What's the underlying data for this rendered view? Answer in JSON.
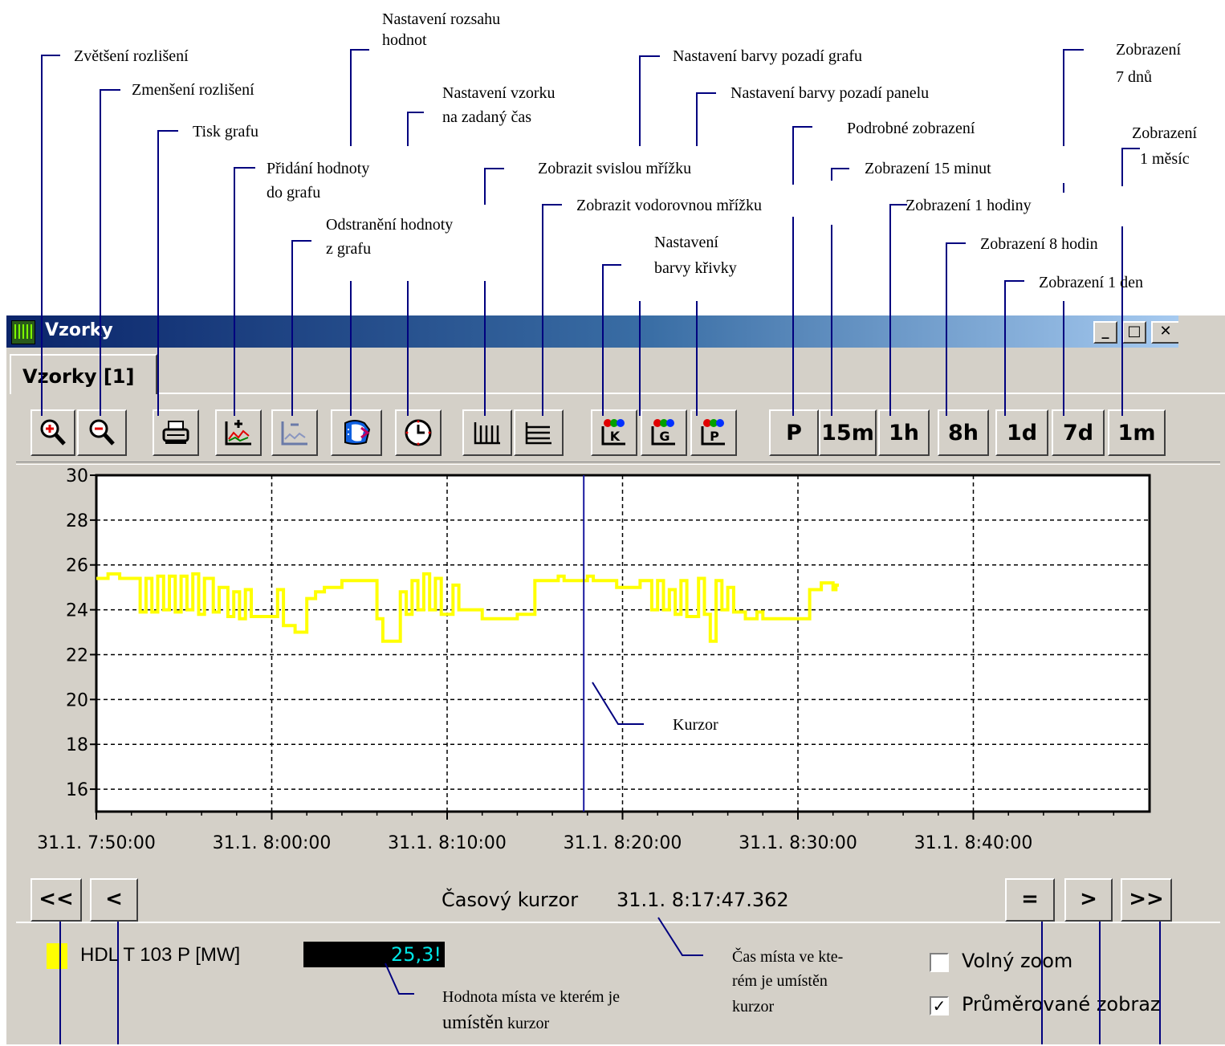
{
  "annotations": {
    "zoom_in": "Zvětšení rozlišení",
    "zoom_out": "Zmenšení rozlišení",
    "print": "Tisk grafu",
    "range_l1": "Nastavení rozsahu",
    "range_l2": "hodnot",
    "sample_l1": "Nastavení vzorku",
    "sample_l2": "na zadaný čas",
    "add_l1": "Přidání hodnoty",
    "add_l2": "do grafu",
    "remove_l1": "Odstranění hodnoty",
    "remove_l2": "z grafu",
    "bg_graph": "Nastavení barvy pozadí grafu",
    "bg_panel": "Nastavení barvy pozadí panelu",
    "vgrid": "Zobrazit svislou mřížku",
    "hgrid": "Zobrazit vodorovnou mřížku",
    "curve_l1": "Nastavení",
    "curve_l2": "barvy křivky",
    "detail": "Podrobné zobrazení",
    "m15": "Zobrazení 15 minut",
    "h1": "Zobrazení 1 hodiny",
    "h8": "Zobrazení 8 hodin",
    "d1": "Zobrazení 1 den",
    "d7_l1": "Zobrazení",
    "d7_l2": "7 dnů",
    "month_l1": "Zobrazení",
    "month_l2": "1 měsíc",
    "cursor": "Kurzor",
    "time_l1": "Čas místa ve kte-",
    "time_l2": "rém je umístěn",
    "time_l3": "kurzor",
    "val_l1": "Hodnota místa ve kterém je",
    "val_l2a": "umístěn",
    "val_l2b": " kurzor"
  },
  "window": {
    "title": "Vzorky",
    "tab": "Vzorky [1]",
    "minimize": "_",
    "maximize": "□",
    "close": "✕"
  },
  "toolbar": {
    "detail": "P",
    "m15": "15m",
    "h1": "1h",
    "h8": "8h",
    "d1": "1d",
    "d7": "7d",
    "month": "1m",
    "icons": [
      "zoom-in-icon",
      "zoom-out-icon",
      "printer-icon",
      "add-value-icon",
      "remove-value-icon",
      "range-icon",
      "clock-icon",
      "vertical-grid-icon",
      "horizontal-grid-icon",
      "curve-color-icon",
      "graph-bg-color-icon",
      "panel-bg-color-icon"
    ],
    "color_letters": [
      "K",
      "G",
      "P"
    ]
  },
  "navigation": {
    "first": "<<",
    "prev": "<",
    "eq": "=",
    "next": ">",
    "last": ">>",
    "cursor_label": "Časový kurzor",
    "cursor_time": "31.1. 8:17:47.362"
  },
  "legend": {
    "series": "HDL T 103  P [MW]",
    "value": "25,3!",
    "color": "#ffff00",
    "free_zoom": "Volný zoom",
    "free_zoom_checked": false,
    "avg": "Průměrované zobraz",
    "avg_checked": true
  },
  "chart_data": {
    "type": "line",
    "xlabel": "",
    "ylabel": "",
    "ylim": [
      15,
      30
    ],
    "yticks": [
      "30",
      "28",
      "26",
      "24",
      "22",
      "20",
      "18",
      "16"
    ],
    "xtick_labels": [
      "31.1. 7:50:00",
      "31.1. 8:00:00",
      "31.1. 8:10:00",
      "31.1. 8:20:00",
      "31.1. 8:30:00",
      "31.1. 8:40:00"
    ],
    "grid": true,
    "background": "#ffffff",
    "series_color": "#ffff00",
    "cursor_time": "31.1. 8:17:47.362",
    "series": [
      {
        "name": "HDL T 103  P [MW]",
        "points": [
          [
            "7:50:00",
            25.4
          ],
          [
            "7:50:40",
            25.4
          ],
          [
            "7:50:40",
            25.6
          ],
          [
            "7:51:20",
            25.6
          ],
          [
            "7:51:20",
            25.4
          ],
          [
            "7:52:30",
            25.4
          ],
          [
            "7:52:30",
            23.9
          ],
          [
            "7:52:50",
            23.9
          ],
          [
            "7:52:50",
            25.4
          ],
          [
            "7:53:10",
            25.4
          ],
          [
            "7:53:10",
            23.9
          ],
          [
            "7:53:30",
            23.9
          ],
          [
            "7:53:30",
            25.5
          ],
          [
            "7:53:50",
            25.5
          ],
          [
            "7:53:50",
            24.0
          ],
          [
            "7:54:10",
            24.0
          ],
          [
            "7:54:10",
            25.5
          ],
          [
            "7:54:30",
            25.5
          ],
          [
            "7:54:30",
            23.9
          ],
          [
            "7:54:50",
            23.9
          ],
          [
            "7:54:50",
            25.5
          ],
          [
            "7:55:10",
            25.5
          ],
          [
            "7:55:10",
            24.0
          ],
          [
            "7:55:30",
            24.0
          ],
          [
            "7:55:30",
            25.6
          ],
          [
            "7:55:50",
            25.6
          ],
          [
            "7:55:50",
            23.8
          ],
          [
            "7:56:10",
            23.8
          ],
          [
            "7:56:10",
            25.4
          ],
          [
            "7:56:40",
            25.4
          ],
          [
            "7:56:40",
            23.9
          ],
          [
            "7:57:00",
            23.9
          ],
          [
            "7:57:00",
            25.0
          ],
          [
            "7:57:30",
            25.0
          ],
          [
            "7:57:30",
            23.7
          ],
          [
            "7:57:50",
            23.7
          ],
          [
            "7:57:50",
            24.8
          ],
          [
            "7:58:10",
            24.8
          ],
          [
            "7:58:10",
            23.6
          ],
          [
            "7:58:30",
            23.6
          ],
          [
            "7:58:30",
            24.9
          ],
          [
            "7:58:50",
            24.9
          ],
          [
            "7:58:50",
            23.7
          ],
          [
            "8:00:20",
            23.7
          ],
          [
            "8:00:20",
            24.9
          ],
          [
            "8:00:40",
            24.9
          ],
          [
            "8:00:40",
            23.3
          ],
          [
            "8:01:20",
            23.3
          ],
          [
            "8:01:20",
            23.0
          ],
          [
            "8:02:00",
            23.0
          ],
          [
            "8:02:00",
            24.5
          ],
          [
            "8:02:30",
            24.5
          ],
          [
            "8:02:30",
            24.8
          ],
          [
            "8:03:00",
            24.8
          ],
          [
            "8:03:00",
            25.0
          ],
          [
            "8:04:00",
            25.0
          ],
          [
            "8:04:00",
            25.3
          ],
          [
            "8:06:00",
            25.3
          ],
          [
            "8:06:00",
            23.6
          ],
          [
            "8:06:20",
            23.6
          ],
          [
            "8:06:20",
            22.6
          ],
          [
            "8:07:20",
            22.6
          ],
          [
            "8:07:20",
            24.8
          ],
          [
            "8:07:40",
            24.8
          ],
          [
            "8:07:40",
            23.8
          ],
          [
            "8:08:00",
            23.8
          ],
          [
            "8:08:00",
            25.3
          ],
          [
            "8:08:20",
            25.3
          ],
          [
            "8:08:20",
            24.0
          ],
          [
            "8:08:40",
            24.0
          ],
          [
            "8:08:40",
            25.6
          ],
          [
            "8:09:00",
            25.6
          ],
          [
            "8:09:00",
            24.0
          ],
          [
            "8:09:20",
            24.0
          ],
          [
            "8:09:20",
            25.4
          ],
          [
            "8:09:40",
            25.4
          ],
          [
            "8:09:40",
            23.8
          ],
          [
            "8:10:20",
            23.8
          ],
          [
            "8:10:20",
            25.1
          ],
          [
            "8:10:40",
            25.1
          ],
          [
            "8:10:40",
            24.0
          ],
          [
            "8:12:00",
            24.0
          ],
          [
            "8:12:00",
            23.6
          ],
          [
            "8:14:00",
            23.6
          ],
          [
            "8:14:00",
            23.8
          ],
          [
            "8:15:00",
            23.8
          ],
          [
            "8:15:00",
            25.3
          ],
          [
            "8:16:20",
            25.3
          ],
          [
            "8:16:20",
            25.5
          ],
          [
            "8:16:40",
            25.5
          ],
          [
            "8:16:40",
            25.3
          ],
          [
            "8:18:00",
            25.3
          ],
          [
            "8:18:00",
            25.5
          ],
          [
            "8:18:20",
            25.5
          ],
          [
            "8:18:20",
            25.3
          ],
          [
            "8:19:40",
            25.3
          ],
          [
            "8:19:40",
            25.0
          ],
          [
            "8:21:00",
            25.0
          ],
          [
            "8:21:00",
            25.3
          ],
          [
            "8:21:40",
            25.3
          ],
          [
            "8:21:40",
            24.0
          ],
          [
            "8:22:00",
            24.0
          ],
          [
            "8:22:00",
            25.3
          ],
          [
            "8:22:20",
            25.3
          ],
          [
            "8:22:20",
            24.0
          ],
          [
            "8:22:40",
            24.0
          ],
          [
            "8:22:40",
            24.9
          ],
          [
            "8:23:00",
            24.9
          ],
          [
            "8:23:00",
            23.8
          ],
          [
            "8:23:20",
            23.8
          ],
          [
            "8:23:20",
            25.3
          ],
          [
            "8:23:40",
            25.3
          ],
          [
            "8:23:40",
            23.7
          ],
          [
            "8:24:20",
            23.7
          ],
          [
            "8:24:20",
            25.4
          ],
          [
            "8:24:40",
            25.4
          ],
          [
            "8:24:40",
            23.8
          ],
          [
            "8:25:00",
            23.8
          ],
          [
            "8:25:00",
            22.6
          ],
          [
            "8:25:20",
            22.6
          ],
          [
            "8:25:20",
            25.3
          ],
          [
            "8:25:40",
            25.3
          ],
          [
            "8:25:40",
            24.0
          ],
          [
            "8:26:00",
            24.0
          ],
          [
            "8:26:00",
            25.0
          ],
          [
            "8:26:20",
            25.0
          ],
          [
            "8:26:20",
            23.9
          ],
          [
            "8:27:00",
            23.9
          ],
          [
            "8:27:00",
            23.6
          ],
          [
            "8:27:40",
            23.6
          ],
          [
            "8:27:40",
            23.9
          ],
          [
            "8:28:00",
            23.9
          ],
          [
            "8:28:00",
            23.6
          ],
          [
            "8:30:40",
            23.6
          ],
          [
            "8:30:40",
            24.9
          ],
          [
            "8:31:20",
            24.9
          ],
          [
            "8:31:20",
            25.2
          ],
          [
            "8:32:00",
            25.2
          ],
          [
            "8:32:00",
            24.9
          ],
          [
            "8:32:10",
            24.9
          ],
          [
            "8:32:10",
            25.1
          ],
          [
            "8:32:20",
            25.1
          ]
        ]
      }
    ]
  }
}
